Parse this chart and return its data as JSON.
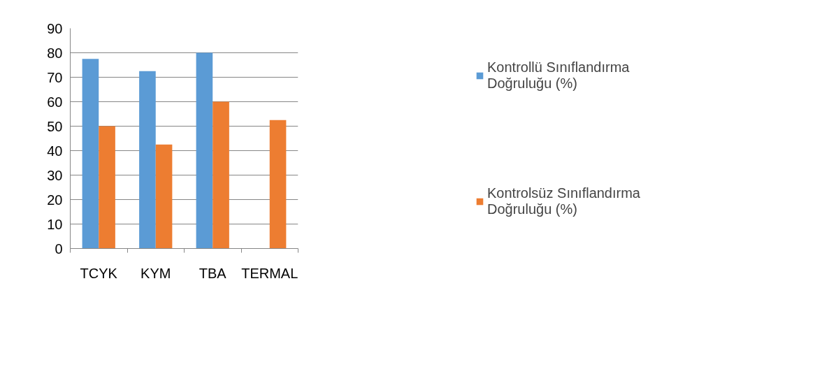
{
  "chart_data": {
    "type": "bar",
    "categories": [
      "TCYK",
      "KYM",
      "TBA",
      "TERMAL"
    ],
    "series": [
      {
        "name": "Kontrollü Sınıflandırma Doğruluğu (%)",
        "color": "#5b9bd5",
        "values": [
          77.5,
          72.5,
          80,
          null
        ]
      },
      {
        "name": "Kontrolsüz Sınıflandırma Doğruluğu (%)",
        "color": "#ed7d31",
        "values": [
          50,
          42.5,
          60,
          52.5
        ]
      }
    ],
    "ylim": [
      0,
      90
    ],
    "yticks": [
      0,
      10,
      20,
      30,
      40,
      50,
      60,
      70,
      80,
      90
    ],
    "grid": "y",
    "legend": "right"
  }
}
